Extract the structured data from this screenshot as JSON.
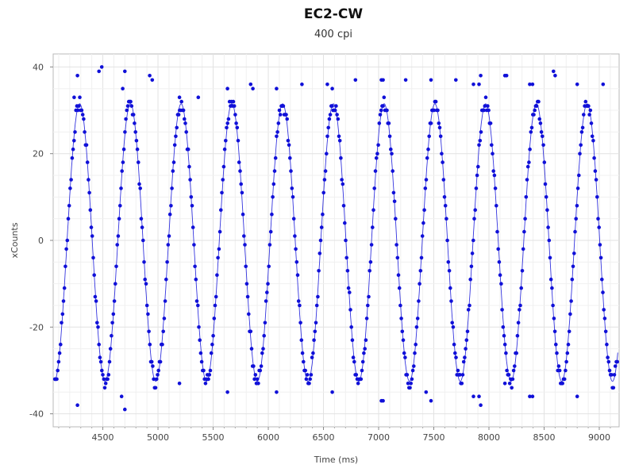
{
  "chart_data": {
    "type": "scatter",
    "title": "EC2-CW",
    "subtitle": "400 cpi",
    "xlabel": "Time (ms)",
    "ylabel": "xCounts",
    "xlim": [
      4050,
      9180
    ],
    "ylim": [
      -43,
      43
    ],
    "x_ticks": [
      4500,
      5000,
      5500,
      6000,
      6500,
      7000,
      7500,
      8000,
      8500,
      9000
    ],
    "y_ticks": [
      -40,
      -20,
      0,
      20,
      40
    ],
    "grid": true,
    "series": [
      {
        "color": "#1010d8",
        "style": "markers+line",
        "sine_fit": {
          "amplitude": 32,
          "period": 460,
          "phase_time": 4290,
          "offset": -0.5,
          "x_start": 4065,
          "x_end": 9170
        },
        "outliers": [
          [
            4465,
            39
          ],
          [
            4490,
            40
          ],
          [
            4270,
            38
          ],
          [
            4240,
            33
          ],
          [
            4700,
            39
          ],
          [
            4680,
            35
          ],
          [
            4925,
            38
          ],
          [
            4948,
            37
          ],
          [
            5365,
            33
          ],
          [
            5195,
            33
          ],
          [
            5630,
            35
          ],
          [
            5840,
            36
          ],
          [
            5860,
            35
          ],
          [
            6075,
            35
          ],
          [
            6305,
            36
          ],
          [
            6535,
            36
          ],
          [
            6580,
            35
          ],
          [
            6790,
            37
          ],
          [
            7025,
            37
          ],
          [
            7040,
            37
          ],
          [
            7245,
            37
          ],
          [
            7475,
            37
          ],
          [
            7700,
            37
          ],
          [
            7925,
            38
          ],
          [
            7910,
            36
          ],
          [
            7860,
            36
          ],
          [
            8145,
            38
          ],
          [
            8160,
            38
          ],
          [
            8585,
            39
          ],
          [
            8600,
            38
          ],
          [
            8370,
            36
          ],
          [
            8395,
            36
          ],
          [
            8800,
            36
          ],
          [
            9035,
            36
          ]
        ]
      }
    ]
  }
}
